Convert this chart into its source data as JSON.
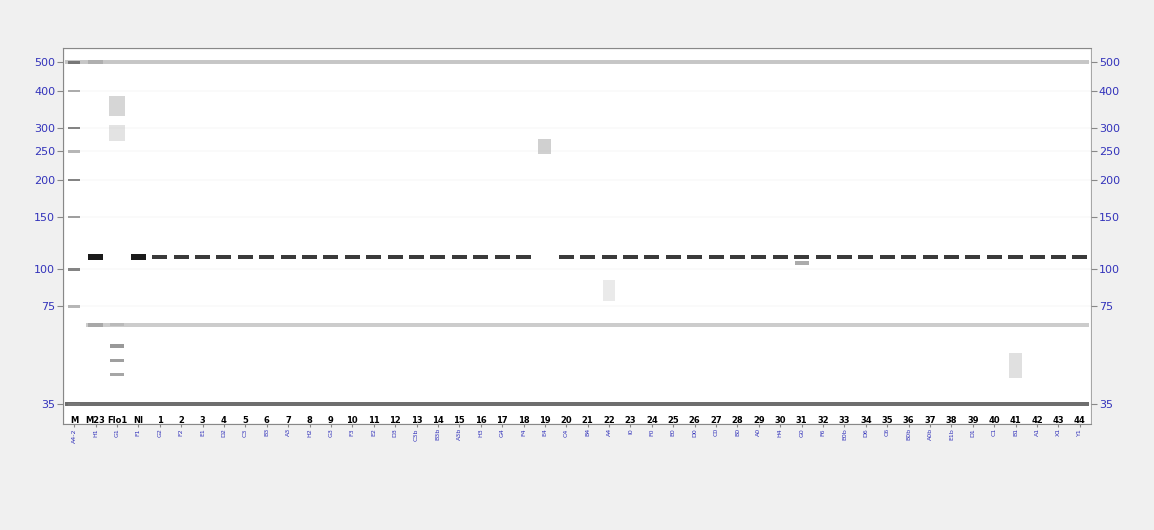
{
  "fig_bg": "#f0f0f0",
  "gel_bg": "#ffffff",
  "lane_labels_top": [
    "M",
    "M23",
    "Flo1",
    "NI",
    "1",
    "2",
    "3",
    "4",
    "5",
    "6",
    "7",
    "8",
    "9",
    "10",
    "11",
    "12",
    "13",
    "14",
    "15",
    "16",
    "17",
    "18",
    "19",
    "20",
    "21",
    "22",
    "23",
    "24",
    "25",
    "26",
    "27",
    "28",
    "29",
    "30",
    "31",
    "32",
    "33",
    "34",
    "35",
    "36",
    "37",
    "38",
    "39",
    "40",
    "41",
    "42",
    "43",
    "44"
  ],
  "bottom_labels": [
    "A4-2",
    "H1",
    "G1",
    "F1",
    "G2",
    "F2",
    "E1",
    "D2",
    "C3",
    "B3",
    "A3",
    "H2",
    "G3",
    "F3",
    "E2",
    "D3",
    "C3b",
    "B3b",
    "A3b",
    "H3",
    "G4",
    "F4",
    "E4",
    "C4",
    "B4",
    "A4",
    "I0",
    "F0",
    "E0",
    "D0",
    "C0",
    "B0",
    "A0",
    "H4",
    "G0",
    "F6",
    "E0b",
    "D6",
    "C6",
    "B0b",
    "A0b",
    "E1b",
    "D1",
    "C1",
    "B1",
    "A1",
    "X1",
    "Y1"
  ],
  "y_ticks": [
    500,
    400,
    300,
    250,
    200,
    150,
    100,
    75,
    35
  ],
  "y_label_color": "#3333bb",
  "tick_color": "#777777",
  "num_lanes": 48,
  "bp_min": 35,
  "bp_max": 550,
  "band_dark": "#222222",
  "band_medium": "#888888",
  "band_light": "#cccccc",
  "band_faint": "#dddddd"
}
